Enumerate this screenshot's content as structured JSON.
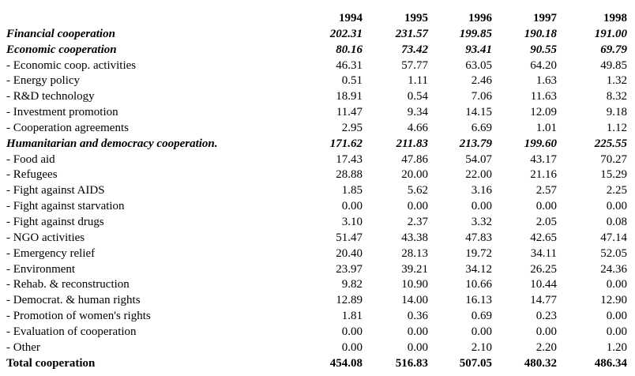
{
  "table": {
    "columns": [
      "1994",
      "1995",
      "1996",
      "1997",
      "1998"
    ],
    "rows": [
      {
        "label": "Financial cooperation",
        "type": "section",
        "values": [
          "202.31",
          "231.57",
          "199.85",
          "190.18",
          "191.00"
        ]
      },
      {
        "label": "Economic cooperation",
        "type": "section",
        "values": [
          "80.16",
          "73.42",
          "93.41",
          "90.55",
          "69.79"
        ]
      },
      {
        "label": "- Economic coop. activities",
        "type": "item",
        "values": [
          "46.31",
          "57.77",
          "63.05",
          "64.20",
          "49.85"
        ]
      },
      {
        "label": "- Energy policy",
        "type": "item",
        "values": [
          "0.51",
          "1.11",
          "2.46",
          "1.63",
          "1.32"
        ]
      },
      {
        "label": "- R&D technology",
        "type": "item",
        "values": [
          "18.91",
          "0.54",
          "7.06",
          "11.63",
          "8.32"
        ]
      },
      {
        "label": "- Investment promotion",
        "type": "item",
        "values": [
          "11.47",
          "9.34",
          "14.15",
          "12.09",
          "9.18"
        ]
      },
      {
        "label": "- Cooperation agreements",
        "type": "item",
        "values": [
          "2.95",
          "4.66",
          "6.69",
          "1.01",
          "1.12"
        ]
      },
      {
        "label": "Humanitarian and democracy cooperation.",
        "type": "section",
        "values": [
          "171.62",
          "211.83",
          "213.79",
          "199.60",
          "225.55"
        ]
      },
      {
        "label": "- Food aid",
        "type": "item",
        "values": [
          "17.43",
          "47.86",
          "54.07",
          "43.17",
          "70.27"
        ]
      },
      {
        "label": "- Refugees",
        "type": "item",
        "values": [
          "28.88",
          "20.00",
          "22.00",
          "21.16",
          "15.29"
        ]
      },
      {
        "label": "- Fight against AIDS",
        "type": "item",
        "values": [
          "1.85",
          "5.62",
          "3.16",
          "2.57",
          "2.25"
        ]
      },
      {
        "label": "- Fight against starvation",
        "type": "item",
        "values": [
          "0.00",
          "0.00",
          "0.00",
          "0.00",
          "0.00"
        ]
      },
      {
        "label": "- Fight against drugs",
        "type": "item",
        "values": [
          "3.10",
          "2.37",
          "3.32",
          "2.05",
          "0.08"
        ]
      },
      {
        "label": "- NGO activities",
        "type": "item",
        "values": [
          "51.47",
          "43.38",
          "47.83",
          "42.65",
          "47.14"
        ]
      },
      {
        "label": "- Emergency relief",
        "type": "item",
        "values": [
          "20.40",
          "28.13",
          "19.72",
          "34.11",
          "52.05"
        ]
      },
      {
        "label": "- Environment",
        "type": "item",
        "values": [
          "23.97",
          "39.21",
          "34.12",
          "26.25",
          "24.36"
        ]
      },
      {
        "label": "- Rehab. & reconstruction",
        "type": "item",
        "values": [
          "9.82",
          "10.90",
          "10.66",
          "10.44",
          "0.00"
        ]
      },
      {
        "label": "- Democrat. & human rights",
        "type": "item",
        "values": [
          "12.89",
          "14.00",
          "16.13",
          "14.77",
          "12.90"
        ]
      },
      {
        "label": "- Promotion of women's rights",
        "type": "item",
        "values": [
          "1.81",
          "0.36",
          "0.69",
          "0.23",
          "0.00"
        ]
      },
      {
        "label": "- Evaluation of cooperation",
        "type": "item",
        "values": [
          "0.00",
          "0.00",
          "0.00",
          "0.00",
          "0.00"
        ]
      },
      {
        "label": "- Other",
        "type": "item",
        "values": [
          "0.00",
          "0.00",
          "2.10",
          "2.20",
          "1.20"
        ]
      },
      {
        "label": "Total cooperation",
        "type": "total",
        "values": [
          "454.08",
          "516.83",
          "507.05",
          "480.32",
          "486.34"
        ]
      }
    ]
  }
}
